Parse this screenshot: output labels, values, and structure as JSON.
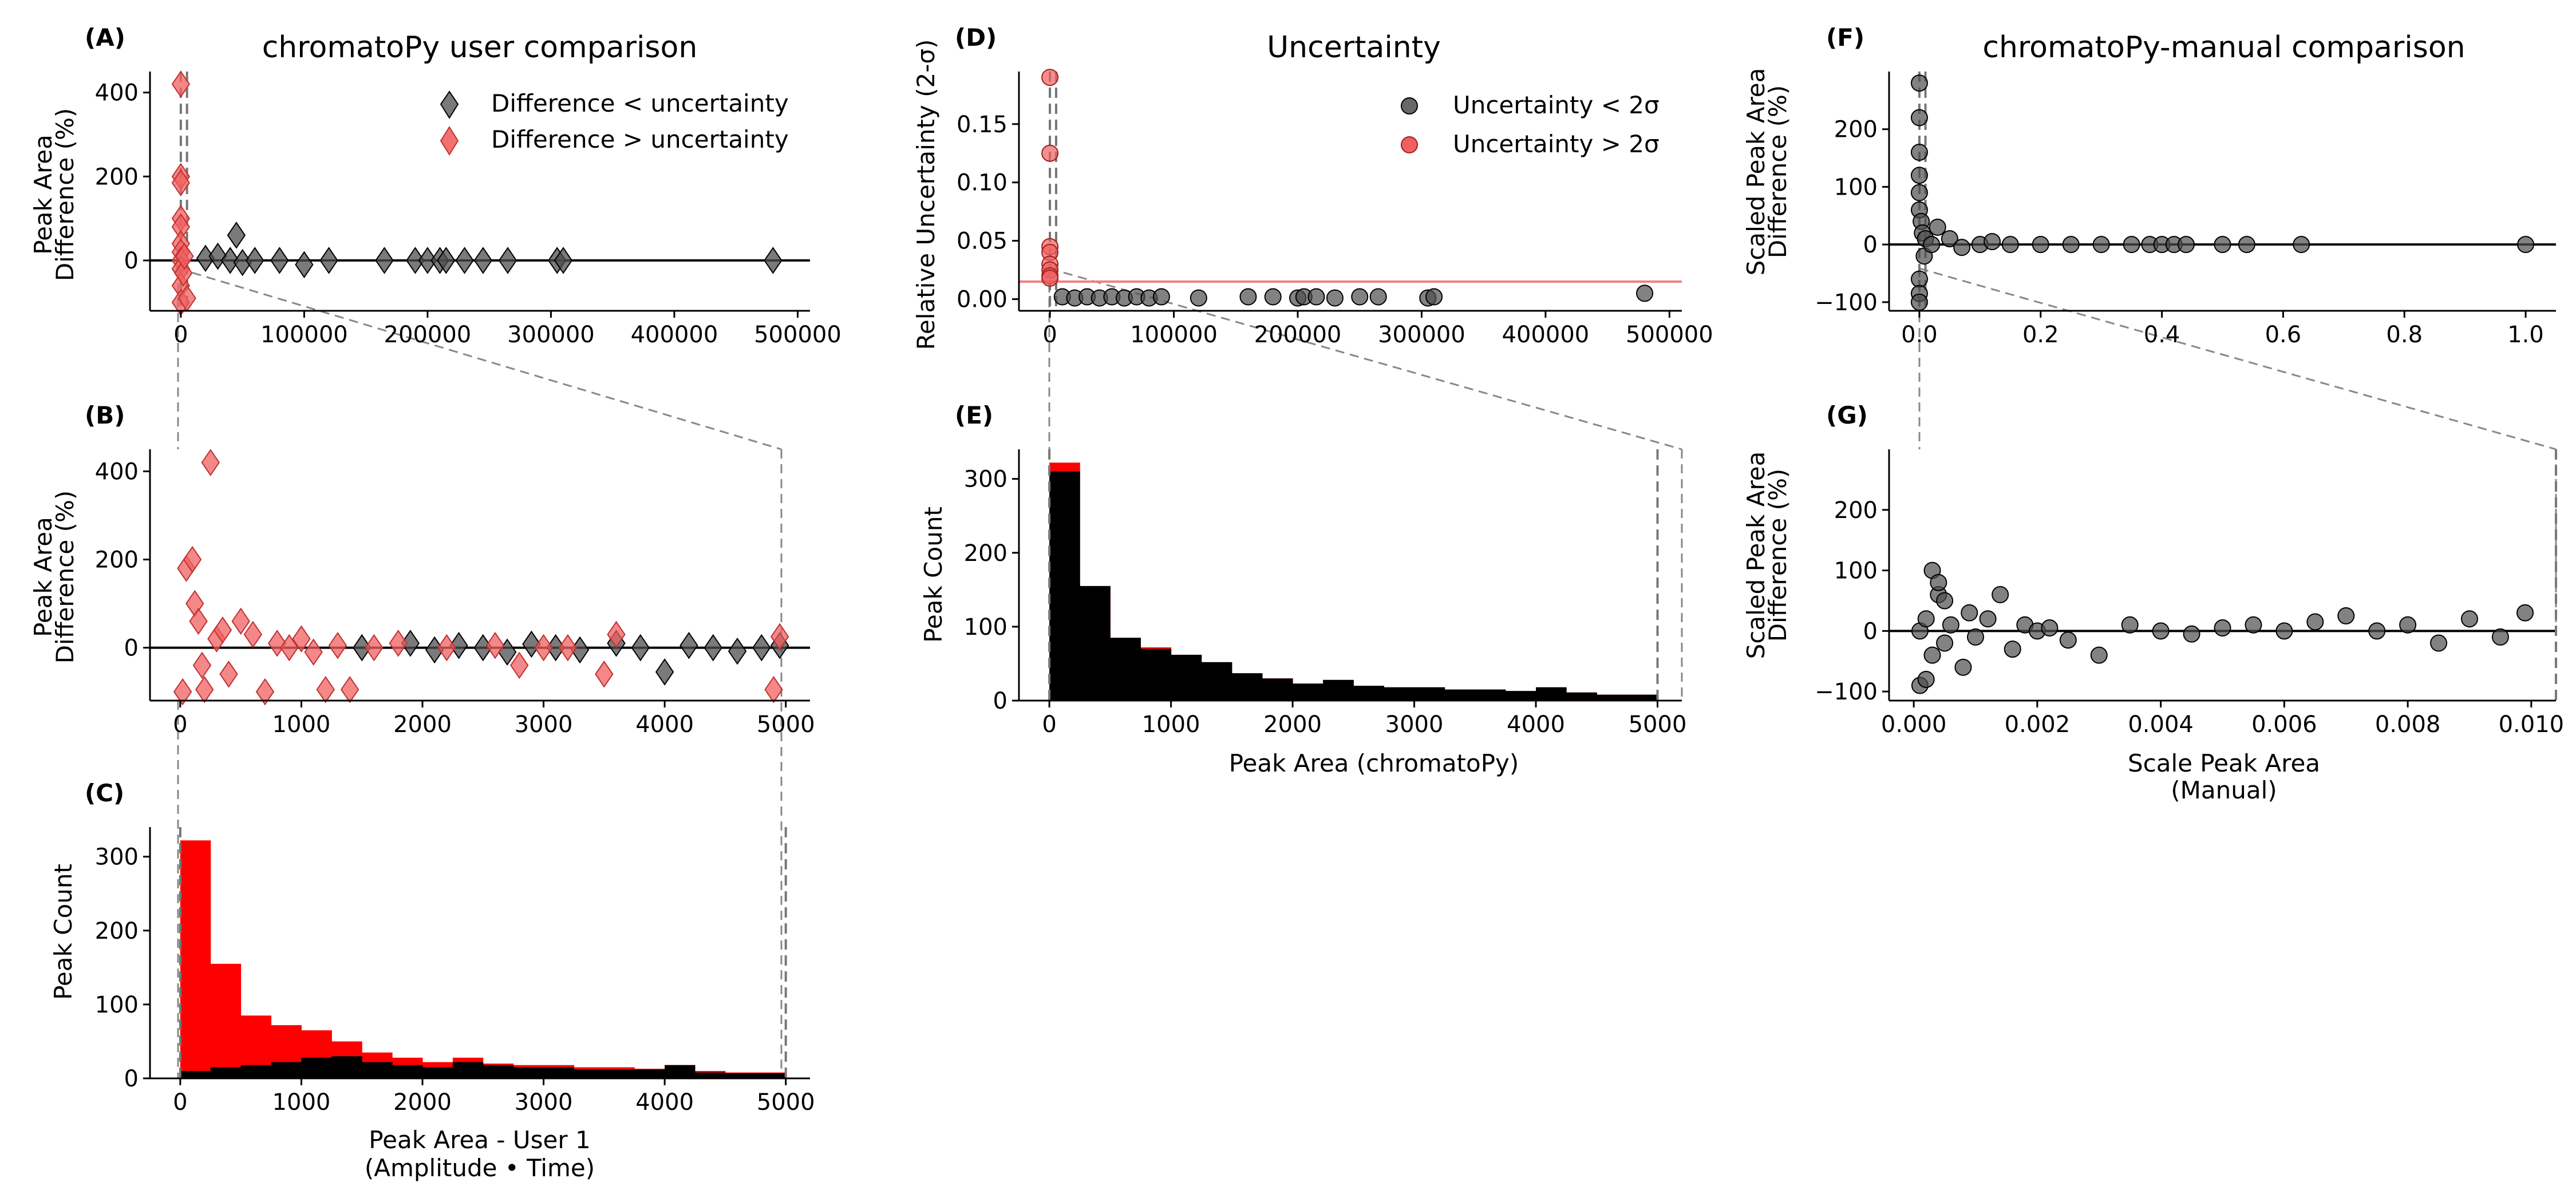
{
  "colors": {
    "black": "#000000",
    "red": "#ff0000",
    "light_red": "#f06060",
    "gray": "#4d4d4d",
    "hline_red": "#f08080"
  },
  "panels": {
    "A": {
      "label": "(A)",
      "title": "chromatoPy user comparison",
      "ylabel_1": "Peak Area",
      "ylabel_2": "Difference (%)",
      "xticks": [
        "0",
        "100000",
        "200000",
        "300000",
        "400000",
        "500000"
      ],
      "yticks": [
        "0",
        "200",
        "400"
      ],
      "legend": [
        "Difference < uncertainty",
        "Difference > uncertainty"
      ]
    },
    "B": {
      "label": "(B)",
      "ylabel_1": "Peak Area",
      "ylabel_2": "Difference (%)",
      "xticks": [
        "0",
        "1000",
        "2000",
        "3000",
        "4000",
        "5000"
      ],
      "yticks": [
        "0",
        "200",
        "400"
      ]
    },
    "C": {
      "label": "(C)",
      "ylabel": "Peak Count",
      "xlabel_1": "Peak Area - User 1",
      "xlabel_2": "(Amplitude • Time)",
      "xticks": [
        "0",
        "1000",
        "2000",
        "3000",
        "4000",
        "5000"
      ],
      "yticks": [
        "0",
        "100",
        "200",
        "300"
      ]
    },
    "D": {
      "label": "(D)",
      "title": "Uncertainty",
      "ylabel": "Relative Uncertainty (2-σ)",
      "xticks": [
        "0",
        "100000",
        "200000",
        "300000",
        "400000",
        "500000"
      ],
      "yticks": [
        "0.00",
        "0.05",
        "0.10",
        "0.15"
      ],
      "legend": [
        "Uncertainty < 2σ",
        "Uncertainty > 2σ"
      ]
    },
    "E": {
      "label": "(E)",
      "ylabel": "Peak Count",
      "xlabel": "Peak Area (chromatoPy)",
      "xticks": [
        "0",
        "1000",
        "2000",
        "3000",
        "4000",
        "5000"
      ],
      "yticks": [
        "0",
        "100",
        "200",
        "300"
      ]
    },
    "F": {
      "label": "(F)",
      "title": "chromatoPy-manual comparison",
      "ylabel_1": "Scaled Peak Area",
      "ylabel_2": "Difference (%)",
      "xticks": [
        "0.0",
        "0.2",
        "0.4",
        "0.6",
        "0.8",
        "1.0"
      ],
      "yticks": [
        "−100",
        "0",
        "100",
        "200"
      ]
    },
    "G": {
      "label": "(G)",
      "ylabel_1": "Scaled Peak Area",
      "ylabel_2": "Difference (%)",
      "xlabel_1": "Scale Peak Area",
      "xlabel_2": "(Manual)",
      "xticks": [
        "0.000",
        "0.002",
        "0.004",
        "0.006",
        "0.008",
        "0.010"
      ],
      "yticks": [
        "−100",
        "0",
        "100",
        "200"
      ]
    }
  },
  "chart_data": [
    {
      "id": "A",
      "type": "scatter",
      "title": "chromatoPy user comparison",
      "ylabel": "Peak Area Difference (%)",
      "xlim": [
        -25000,
        510000
      ],
      "ylim": [
        -120,
        450
      ],
      "series": [
        {
          "name": "Difference < uncertainty",
          "color": "#4d4d4d",
          "x": [
            20000,
            30000,
            40000,
            45000,
            50000,
            60000,
            80000,
            100000,
            120000,
            165000,
            190000,
            200000,
            210000,
            215000,
            230000,
            245000,
            265000,
            305000,
            310000,
            480000
          ],
          "y": [
            5,
            10,
            0,
            60,
            -5,
            0,
            0,
            -10,
            0,
            0,
            0,
            0,
            0,
            0,
            0,
            0,
            0,
            0,
            0,
            0
          ]
        },
        {
          "name": "Difference > uncertainty",
          "color": "#f06060",
          "x": [
            0,
            0,
            0,
            0,
            0,
            0,
            0,
            0,
            0,
            0,
            0,
            2000,
            3000,
            5000
          ],
          "y": [
            420,
            200,
            185,
            100,
            80,
            40,
            20,
            0,
            -20,
            -60,
            -100,
            -30,
            10,
            -90
          ]
        }
      ]
    },
    {
      "id": "B",
      "type": "scatter",
      "ylabel": "Peak Area Difference (%)",
      "xlim": [
        -250,
        5200
      ],
      "ylim": [
        -120,
        450
      ],
      "series": [
        {
          "name": "Difference < uncertainty",
          "color": "#4d4d4d",
          "x": [
            1500,
            1900,
            2100,
            2300,
            2500,
            2700,
            2900,
            3100,
            3300,
            3600,
            3800,
            4000,
            4200,
            4400,
            4600,
            4800,
            4950
          ],
          "y": [
            0,
            10,
            -5,
            5,
            0,
            -10,
            8,
            0,
            -5,
            10,
            0,
            -55,
            5,
            0,
            -8,
            0,
            5
          ]
        },
        {
          "name": "Difference > uncertainty",
          "color": "#f06060",
          "x": [
            20,
            50,
            100,
            120,
            250,
            150,
            180,
            200,
            300,
            350,
            400,
            500,
            600,
            700,
            800,
            900,
            1000,
            1100,
            1200,
            1300,
            1400,
            1600,
            1800,
            2200,
            2600,
            2800,
            3000,
            3200,
            3500,
            3600,
            4900,
            4950
          ],
          "y": [
            -100,
            180,
            200,
            100,
            420,
            60,
            -40,
            -95,
            20,
            40,
            -60,
            60,
            30,
            -100,
            10,
            0,
            20,
            -10,
            -95,
            5,
            -95,
            0,
            10,
            0,
            5,
            -40,
            0,
            0,
            -60,
            30,
            -95,
            25
          ]
        }
      ]
    },
    {
      "id": "C",
      "type": "bar",
      "ylabel": "Peak Count",
      "xlabel": "Peak Area - User 1 (Amplitude • Time)",
      "bin_edges": [
        0,
        250,
        500,
        750,
        1000,
        1250,
        1500,
        1750,
        2000,
        2250,
        2500,
        2750,
        3000,
        3250,
        3500,
        3750,
        4000,
        4250,
        4500,
        4750,
        5000
      ],
      "ylim": [
        0,
        340
      ],
      "series": [
        {
          "color": "#ff0000",
          "values": [
            322,
            155,
            85,
            72,
            65,
            50,
            35,
            28,
            22,
            28,
            20,
            18,
            18,
            15,
            15,
            13,
            18,
            10,
            8,
            8
          ]
        },
        {
          "color": "#000000",
          "values": [
            10,
            15,
            18,
            22,
            28,
            30,
            22,
            18,
            15,
            22,
            18,
            15,
            15,
            12,
            12,
            12,
            18,
            8,
            7,
            7
          ]
        }
      ]
    },
    {
      "id": "D",
      "type": "scatter",
      "title": "Uncertainty",
      "ylabel": "Relative Uncertainty (2-σ)",
      "xlim": [
        -25000,
        510000
      ],
      "ylim": [
        -0.01,
        0.195
      ],
      "threshold": 0.015,
      "series": [
        {
          "name": "Uncertainty < 2σ",
          "color": "#4d4d4d",
          "x": [
            10000,
            20000,
            30000,
            40000,
            50000,
            60000,
            70000,
            80000,
            90000,
            120000,
            160000,
            180000,
            200000,
            205000,
            215000,
            230000,
            250000,
            265000,
            305000,
            310000,
            480000
          ],
          "y": [
            0.002,
            0.001,
            0.002,
            0.001,
            0.002,
            0.001,
            0.002,
            0.001,
            0.002,
            0.001,
            0.002,
            0.002,
            0.001,
            0.002,
            0.002,
            0.001,
            0.002,
            0.002,
            0.001,
            0.002,
            0.005
          ]
        },
        {
          "name": "Uncertainty > 2σ",
          "color": "#f06060",
          "x": [
            0,
            0,
            0,
            0,
            0,
            0,
            0,
            0
          ],
          "y": [
            0.19,
            0.125,
            0.045,
            0.04,
            0.03,
            0.025,
            0.02,
            0.018
          ]
        }
      ]
    },
    {
      "id": "E",
      "type": "bar",
      "ylabel": "Peak Count",
      "xlabel": "Peak Area (chromatoPy)",
      "bin_edges": [
        0,
        250,
        500,
        750,
        1000,
        1250,
        1500,
        1750,
        2000,
        2250,
        2500,
        2750,
        3000,
        3250,
        3500,
        3750,
        4000,
        4250,
        4500,
        4750,
        5000
      ],
      "ylim": [
        0,
        340
      ],
      "series": [
        {
          "color": "#ff0000",
          "values": [
            322,
            155,
            85,
            72,
            62,
            52,
            37,
            30,
            23,
            28,
            20,
            18,
            18,
            15,
            15,
            13,
            18,
            11,
            8,
            8
          ]
        },
        {
          "color": "#000000",
          "values": [
            310,
            155,
            85,
            70,
            62,
            52,
            37,
            30,
            23,
            28,
            20,
            18,
            18,
            15,
            15,
            13,
            18,
            11,
            8,
            8
          ]
        }
      ]
    },
    {
      "id": "F",
      "type": "scatter",
      "title": "chromatoPy-manual comparison",
      "ylabel": "Scaled Peak Area Difference (%)",
      "xlim": [
        -0.05,
        1.05
      ],
      "ylim": [
        -115,
        300
      ],
      "series": [
        {
          "color": "#4d4d4d",
          "x": [
            0,
            0,
            0,
            0,
            0,
            0,
            0,
            0,
            0,
            0.003,
            0.005,
            0.008,
            0.01,
            0.02,
            0.03,
            0.05,
            0.07,
            0.1,
            0.12,
            0.15,
            0.2,
            0.25,
            0.3,
            0.35,
            0.38,
            0.4,
            0.42,
            0.44,
            0.5,
            0.54,
            0.63,
            1.0
          ],
          "y": [
            280,
            220,
            160,
            120,
            90,
            60,
            -60,
            -85,
            -100,
            40,
            20,
            -20,
            10,
            0,
            30,
            10,
            -5,
            0,
            5,
            0,
            0,
            0,
            0,
            0,
            0,
            0,
            0,
            0,
            0,
            0,
            0,
            0
          ]
        }
      ]
    },
    {
      "id": "G",
      "type": "scatter",
      "ylabel": "Scaled Peak Area Difference (%)",
      "xlabel": "Scale Peak Area (Manual)",
      "xlim": [
        -0.0004,
        0.0104
      ],
      "ylim": [
        -115,
        300
      ],
      "series": [
        {
          "color": "#4d4d4d",
          "x": [
            0.0001,
            0.0002,
            0.0003,
            0.0004,
            0.0005,
            0.0006,
            0.0008,
            0.0009,
            0.001,
            0.0012,
            0.0014,
            0.0016,
            0.0018,
            0.002,
            0.0022,
            0.0025,
            0.003,
            0.0035,
            0.004,
            0.0045,
            0.005,
            0.0055,
            0.006,
            0.0065,
            0.007,
            0.0075,
            0.008,
            0.0085,
            0.009,
            0.0095,
            0.0099,
            0.0001,
            0.0002,
            0.0003,
            0.0004,
            0.0005
          ],
          "y": [
            0,
            20,
            -40,
            60,
            -20,
            10,
            -60,
            30,
            -10,
            20,
            60,
            -30,
            10,
            0,
            5,
            -15,
            -40,
            10,
            0,
            -5,
            5,
            10,
            0,
            15,
            25,
            0,
            10,
            -20,
            20,
            -10,
            30,
            -90,
            -80,
            100,
            80,
            50
          ]
        }
      ]
    }
  ]
}
